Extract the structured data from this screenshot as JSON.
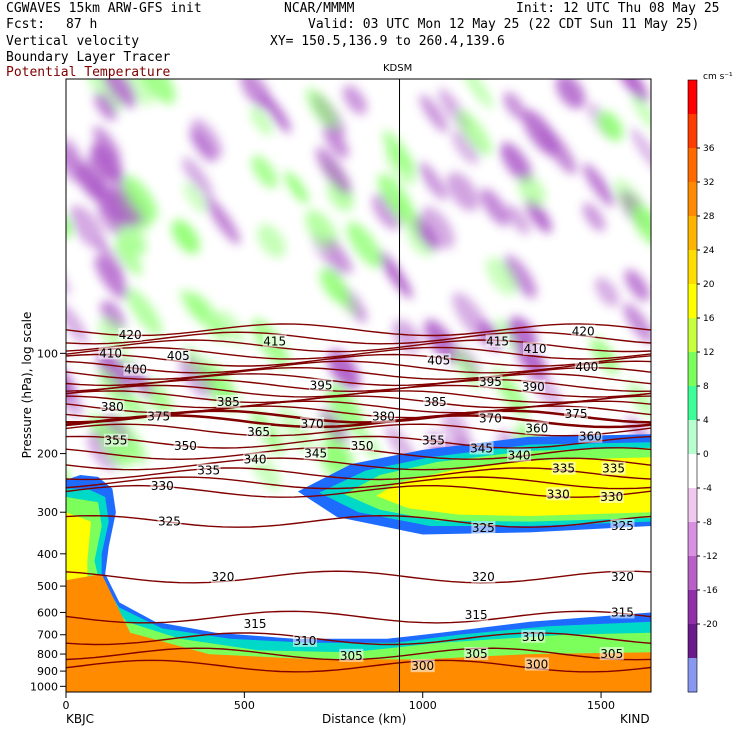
{
  "header": {
    "model": "CGWAVES 15km ARW-GFS init",
    "org": "NCAR/MMMM",
    "init": "Init: 12 UTC Thu 08 May 25",
    "fcst_label": "Fcst:",
    "fcst_value": "87 h",
    "valid": "Valid: 03 UTC Mon 12 May 25 (22 CDT Sun 11 May 25)",
    "xy": "XY= 150.5,136.9 to 260.4,139.6",
    "field1": "Vertical velocity",
    "field2": "Boundary Layer Tracer",
    "field3": "Potential Temperature"
  },
  "colors": {
    "theta": "#800000",
    "tracer_orange": "#ff8c00",
    "tracer_yellow": "#ffff00",
    "tracer_green": "#7cff5a",
    "tracer_cyan": "#00d8c8",
    "tracer_blue": "#1e6cff",
    "updraft_green": "#7cff5a",
    "downdraft_purple": "#a040c0"
  },
  "chart_data": {
    "type": "cross-section",
    "ylabel": "Pressure (hPa), log scale",
    "xlabel": "Distance (km)",
    "x_ticks": [
      0,
      500,
      1000,
      1500
    ],
    "x_range": [
      0,
      1640
    ],
    "y_ticks": [
      100,
      200,
      300,
      400,
      500,
      600,
      700,
      800,
      900,
      1000
    ],
    "y_range_hpa": [
      1040,
      15
    ],
    "y_scale": "log",
    "left_station": "KBJC",
    "right_station": "KIND",
    "marker_station": "KDSM",
    "marker_distance_km": 935,
    "colorbar": {
      "unit": "cm s⁻¹",
      "labels": [
        "36",
        "32",
        "28",
        "24",
        "20",
        "16",
        "12",
        "8",
        "4",
        "0",
        "-4",
        "-8",
        "-12",
        "-16",
        "-20"
      ],
      "values": [
        36,
        32,
        28,
        24,
        20,
        16,
        12,
        8,
        4,
        0,
        -4,
        -8,
        -12,
        -16,
        -20
      ],
      "colors": [
        "#ff0000",
        "#ff3c00",
        "#ff6a00",
        "#ff8c00",
        "#ffb400",
        "#ffdd00",
        "#ffff00",
        "#c8ff3c",
        "#7cff5a",
        "#3cff9a",
        "#b8ffd0",
        "#ffffff",
        "#f0c8f0",
        "#d890e0",
        "#b860c8",
        "#9030a8",
        "#6a1a8a",
        "#8898f0"
      ]
    },
    "theta_labels": [
      {
        "text": "420",
        "x": 180,
        "p": 88
      },
      {
        "text": "410",
        "x": 125,
        "p": 100
      },
      {
        "text": "405",
        "x": 315,
        "p": 102
      },
      {
        "text": "400",
        "x": 195,
        "p": 112
      },
      {
        "text": "415",
        "x": 585,
        "p": 92
      },
      {
        "text": "395",
        "x": 715,
        "p": 125
      },
      {
        "text": "380",
        "x": 130,
        "p": 145
      },
      {
        "text": "375",
        "x": 260,
        "p": 155
      },
      {
        "text": "385",
        "x": 455,
        "p": 140
      },
      {
        "text": "380",
        "x": 890,
        "p": 155
      },
      {
        "text": "385",
        "x": 1035,
        "p": 140
      },
      {
        "text": "405",
        "x": 1045,
        "p": 105
      },
      {
        "text": "415",
        "x": 1210,
        "p": 92
      },
      {
        "text": "410",
        "x": 1315,
        "p": 97
      },
      {
        "text": "420",
        "x": 1450,
        "p": 86
      },
      {
        "text": "400",
        "x": 1460,
        "p": 110
      },
      {
        "text": "395",
        "x": 1190,
        "p": 122
      },
      {
        "text": "390",
        "x": 1310,
        "p": 126
      },
      {
        "text": "375",
        "x": 1430,
        "p": 152
      },
      {
        "text": "370",
        "x": 690,
        "p": 163
      },
      {
        "text": "370",
        "x": 1190,
        "p": 157
      },
      {
        "text": "365",
        "x": 540,
        "p": 172
      },
      {
        "text": "360",
        "x": 1320,
        "p": 168
      },
      {
        "text": "360",
        "x": 1470,
        "p": 178
      },
      {
        "text": "355",
        "x": 140,
        "p": 183
      },
      {
        "text": "350",
        "x": 335,
        "p": 190
      },
      {
        "text": "355",
        "x": 1030,
        "p": 183
      },
      {
        "text": "350",
        "x": 830,
        "p": 190
      },
      {
        "text": "345",
        "x": 1165,
        "p": 193
      },
      {
        "text": "345",
        "x": 700,
        "p": 200
      },
      {
        "text": "340",
        "x": 530,
        "p": 208
      },
      {
        "text": "340",
        "x": 1270,
        "p": 203
      },
      {
        "text": "335",
        "x": 400,
        "p": 225
      },
      {
        "text": "335",
        "x": 1395,
        "p": 222
      },
      {
        "text": "335",
        "x": 1535,
        "p": 222
      },
      {
        "text": "330",
        "x": 270,
        "p": 250
      },
      {
        "text": "330",
        "x": 1380,
        "p": 265
      },
      {
        "text": "330",
        "x": 1530,
        "p": 270
      },
      {
        "text": "325",
        "x": 290,
        "p": 320
      },
      {
        "text": "325",
        "x": 1170,
        "p": 335
      },
      {
        "text": "325",
        "x": 1560,
        "p": 330
      },
      {
        "text": "320",
        "x": 440,
        "p": 470
      },
      {
        "text": "320",
        "x": 1170,
        "p": 470
      },
      {
        "text": "320",
        "x": 1560,
        "p": 470
      },
      {
        "text": "315",
        "x": 530,
        "p": 650
      },
      {
        "text": "315",
        "x": 1150,
        "p": 610
      },
      {
        "text": "315",
        "x": 1560,
        "p": 600
      },
      {
        "text": "310",
        "x": 670,
        "p": 730
      },
      {
        "text": "310",
        "x": 1310,
        "p": 710
      },
      {
        "text": "305",
        "x": 800,
        "p": 810
      },
      {
        "text": "305",
        "x": 1150,
        "p": 800
      },
      {
        "text": "305",
        "x": 1530,
        "p": 800
      },
      {
        "text": "300",
        "x": 1000,
        "p": 870
      },
      {
        "text": "300",
        "x": 1320,
        "p": 860
      }
    ]
  }
}
